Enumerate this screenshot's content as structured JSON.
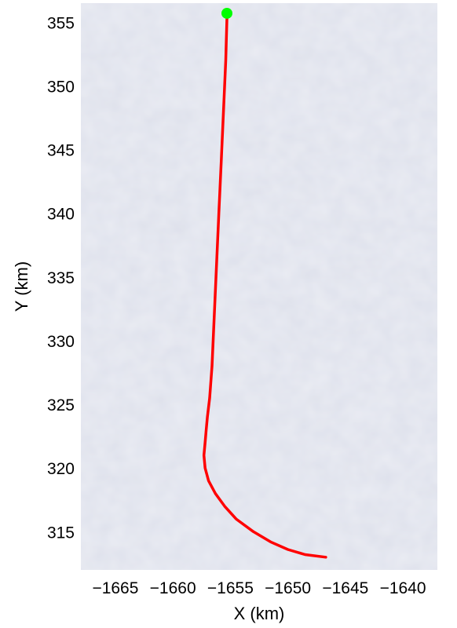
{
  "chart_data": {
    "type": "line",
    "title": "",
    "xlabel": "X (km)",
    "ylabel": "Y (km)",
    "xlim": [
      -1668,
      -1637
    ],
    "ylim": [
      312,
      356.5
    ],
    "xticks": [
      -1665,
      -1660,
      -1655,
      -1650,
      -1645,
      -1640
    ],
    "xtick_labels": [
      "−1665",
      "−1660",
      "−1655",
      "−1650",
      "−1645",
      "−1640"
    ],
    "yticks": [
      315,
      320,
      325,
      330,
      335,
      340,
      345,
      350,
      355
    ],
    "ytick_labels": [
      "315",
      "320",
      "325",
      "330",
      "335",
      "340",
      "345",
      "350",
      "355"
    ],
    "grid": false,
    "background": "satellite ice imagery",
    "series": [
      {
        "color": "#ff0000",
        "x": [
          -1655.3,
          -1655.4,
          -1655.6,
          -1655.8,
          -1656.0,
          -1656.2,
          -1656.4,
          -1656.6,
          -1656.8,
          -1657.0,
          -1657.1,
          -1657.2,
          -1657.3,
          -1657.2,
          -1656.9,
          -1656.3,
          -1655.5,
          -1654.5,
          -1653.0,
          -1651.5,
          -1650.0,
          -1648.5,
          -1646.7
        ],
        "y": [
          355.3,
          352.0,
          348.0,
          344.0,
          340.0,
          336.0,
          332.0,
          328.0,
          325.5,
          324.0,
          323.0,
          322.0,
          321.0,
          320.0,
          319.0,
          318.0,
          317.0,
          316.0,
          315.0,
          314.2,
          313.6,
          313.2,
          313.0
        ]
      }
    ],
    "start_marker": {
      "x": -1655.3,
      "y": 355.7,
      "color": "#00ff00"
    }
  }
}
